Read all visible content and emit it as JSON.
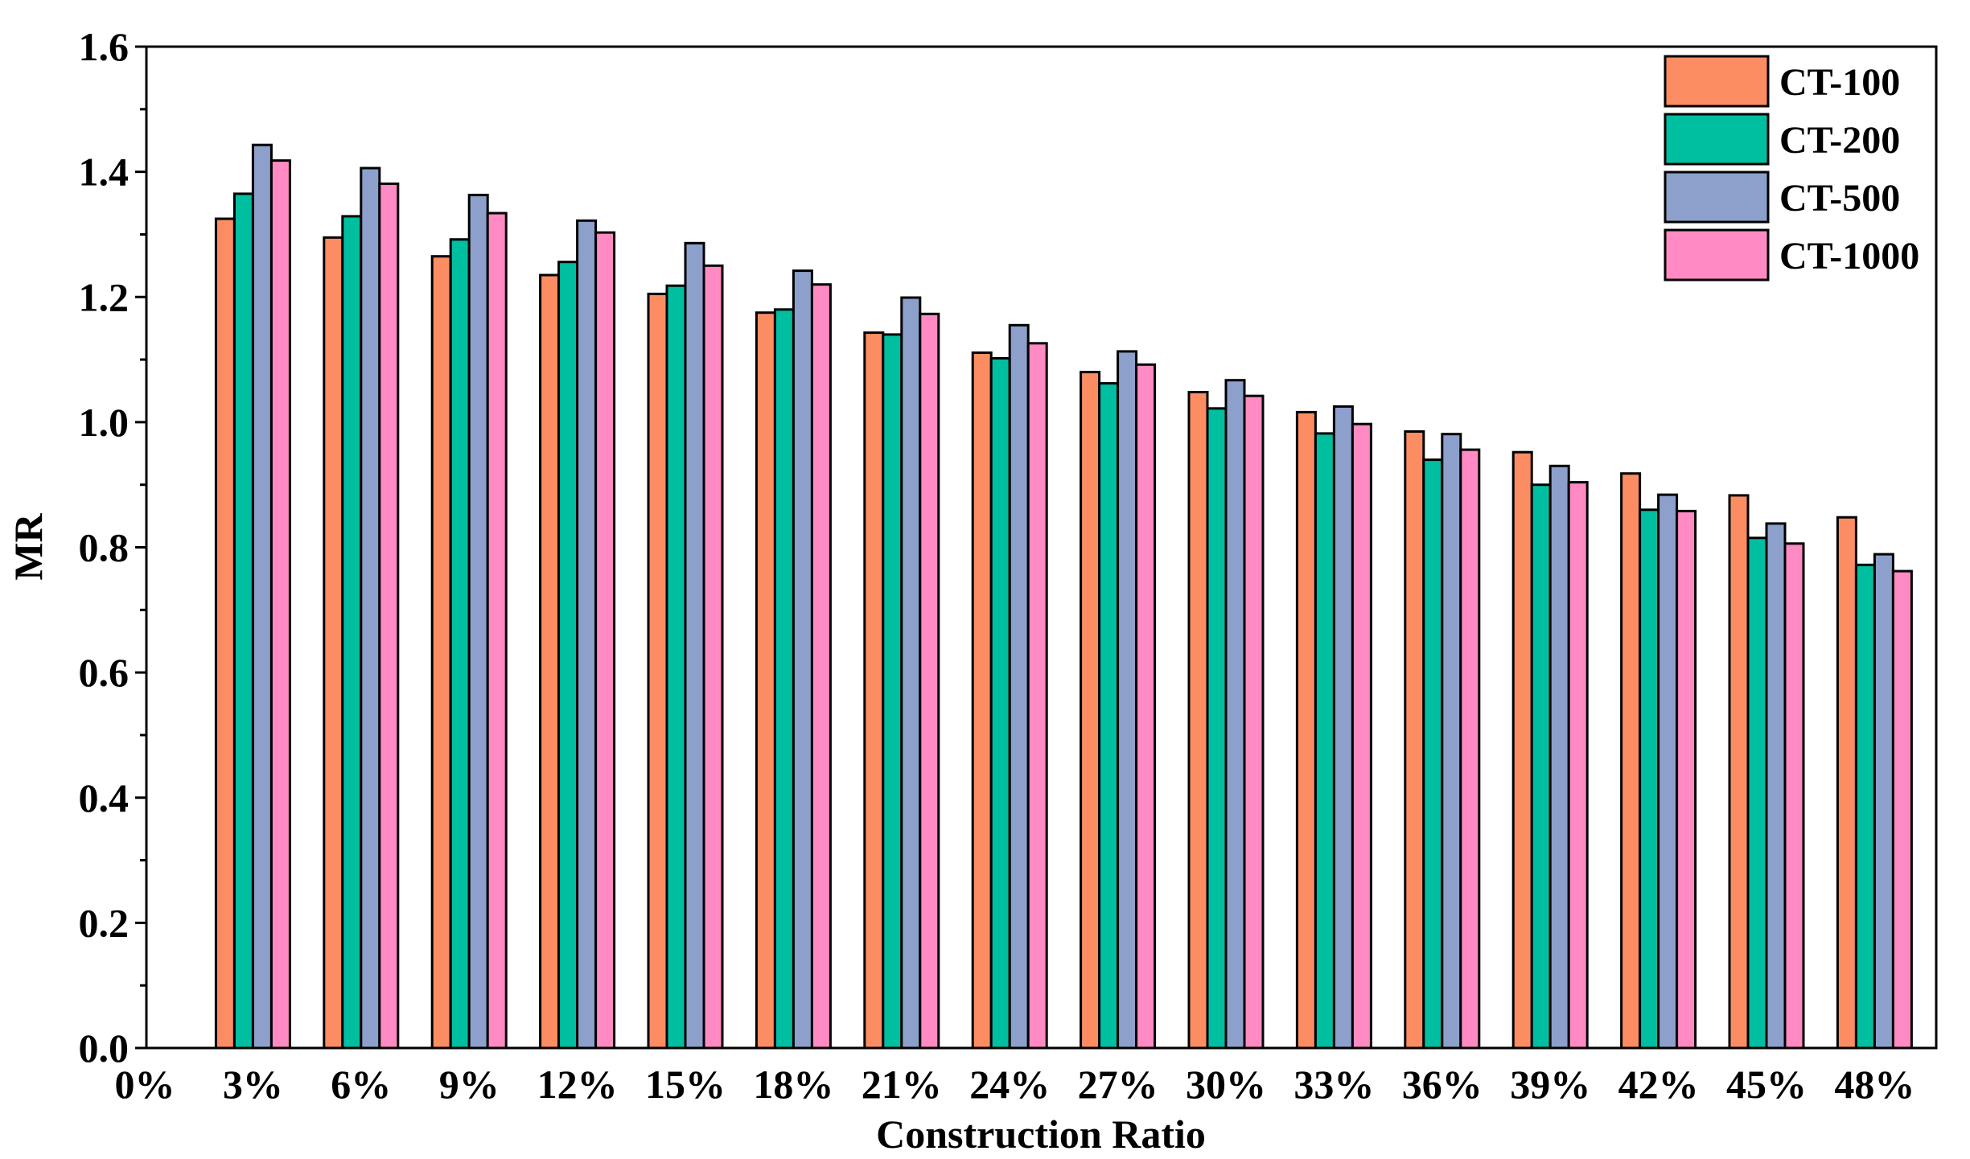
{
  "chart_data": {
    "type": "bar",
    "xlabel": "Construction Ratio",
    "ylabel": "MR",
    "ylim": [
      0,
      1.6
    ],
    "y_ticks": [
      "0.0",
      "0.2",
      "0.4",
      "0.6",
      "0.8",
      "1.0",
      "1.2",
      "1.4",
      "1.6"
    ],
    "categories": [
      "0%",
      "3%",
      "6%",
      "9%",
      "12%",
      "15%",
      "18%",
      "21%",
      "24%",
      "27%",
      "30%",
      "33%",
      "36%",
      "39%",
      "42%",
      "45%",
      "48%"
    ],
    "legend_position": "top-right",
    "grid": false,
    "series": [
      {
        "name": "CT-100",
        "color": "#FC8D62",
        "values": [
          null,
          1.325,
          1.295,
          1.265,
          1.235,
          1.205,
          1.175,
          1.143,
          1.111,
          1.08,
          1.048,
          1.016,
          0.985,
          0.952,
          0.918,
          0.883,
          0.848
        ]
      },
      {
        "name": "CT-200",
        "color": "#00BFA0",
        "values": [
          null,
          1.365,
          1.329,
          1.292,
          1.256,
          1.218,
          1.18,
          1.14,
          1.102,
          1.062,
          1.022,
          0.982,
          0.94,
          0.9,
          0.86,
          0.815,
          0.772
        ]
      },
      {
        "name": "CT-500",
        "color": "#8DA0CB",
        "values": [
          null,
          1.443,
          1.406,
          1.363,
          1.322,
          1.286,
          1.242,
          1.199,
          1.155,
          1.113,
          1.067,
          1.025,
          0.981,
          0.93,
          0.884,
          0.838,
          0.789
        ]
      },
      {
        "name": "CT-1000",
        "color": "#FF8AC4",
        "values": [
          null,
          1.418,
          1.381,
          1.334,
          1.303,
          1.25,
          1.22,
          1.173,
          1.126,
          1.092,
          1.042,
          0.997,
          0.956,
          0.904,
          0.858,
          0.806,
          0.762
        ]
      }
    ]
  }
}
